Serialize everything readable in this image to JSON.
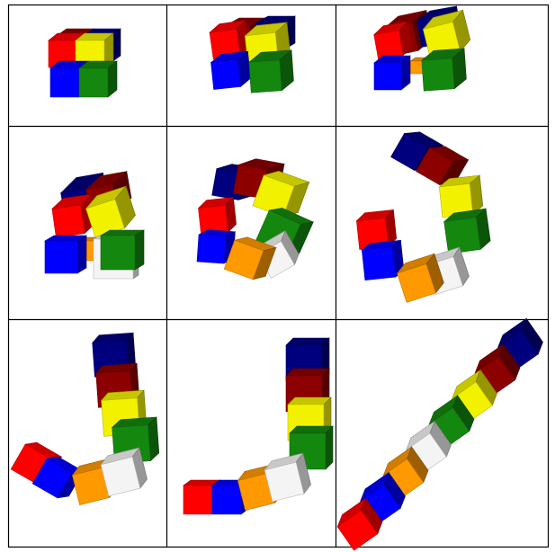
{
  "colors": {
    "red": "#ff0000",
    "yellow": "#f2f200",
    "blue": "#0000ff",
    "green": "#14870f",
    "orange": "#ff9900",
    "white": "#f4f4f4",
    "darkred": "#8c0000",
    "navy": "#00007f",
    "grid_line": "#000000"
  },
  "grid": {
    "rows": 3,
    "cols": 3
  },
  "panels": [
    {
      "step": 1,
      "shape": "folded-cube"
    },
    {
      "step": 2,
      "shape": "slightly-unfolding"
    },
    {
      "step": 3,
      "shape": "unfolding"
    },
    {
      "step": 4,
      "shape": "opening-ring"
    },
    {
      "step": 5,
      "shape": "ring"
    },
    {
      "step": 6,
      "shape": "j-curve"
    },
    {
      "step": 7,
      "shape": "j-shape"
    },
    {
      "step": 8,
      "shape": "l-shape"
    },
    {
      "step": 9,
      "shape": "straight-diagonal-chain"
    }
  ]
}
